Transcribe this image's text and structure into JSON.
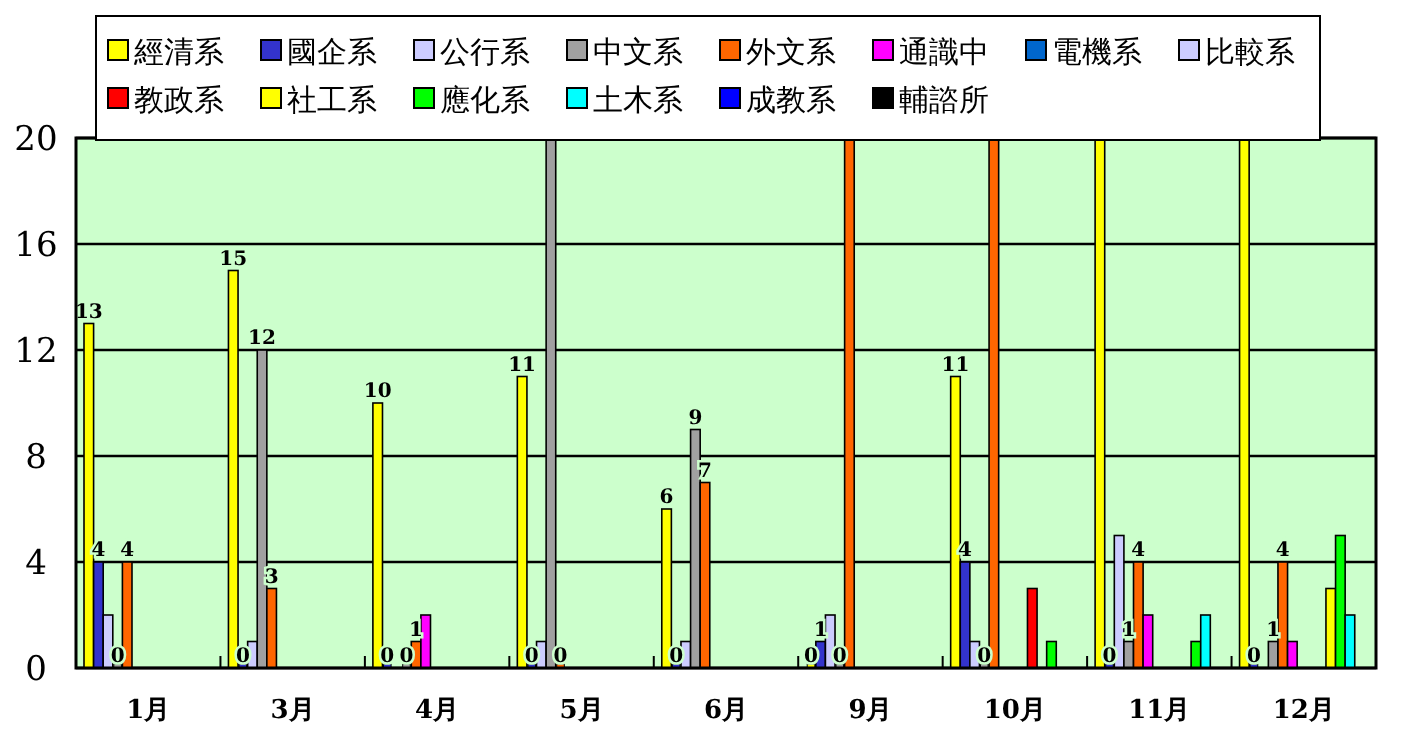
{
  "chart_data": {
    "type": "bar",
    "categories": [
      "1月",
      "3月",
      "4月",
      "5月",
      "6月",
      "9月",
      "10月",
      "11月",
      "12月"
    ],
    "series": [
      {
        "name": "經清系",
        "color": "#ffff00",
        "values": [
          13,
          15,
          10,
          11,
          6,
          0,
          11,
          20,
          20
        ],
        "value_labels": [
          "13",
          "15",
          "10",
          "11",
          "6",
          "0",
          "11",
          null,
          null
        ]
      },
      {
        "name": "國企系",
        "color": "#3333cc",
        "values": [
          4,
          0,
          0,
          0,
          0,
          1,
          4,
          0,
          0
        ],
        "value_labels": [
          "4",
          "0",
          "0",
          "0",
          "0",
          "1",
          "4",
          "0",
          "0"
        ]
      },
      {
        "name": "公行系",
        "color": "#ccccff",
        "values": [
          2,
          1,
          null,
          1,
          1,
          2,
          1,
          5,
          null
        ]
      },
      {
        "name": "中文系",
        "color": "#a0a0a0",
        "values": [
          0,
          12,
          0,
          20,
          9,
          0,
          0,
          1,
          1
        ],
        "value_labels": [
          "0",
          "12",
          "0",
          null,
          "9",
          "0",
          "0",
          "1",
          "1"
        ]
      },
      {
        "name": "外文系",
        "color": "#ff6600",
        "values": [
          4,
          3,
          1,
          0,
          7,
          20,
          20,
          4,
          4
        ],
        "value_labels": [
          "4",
          "3",
          "1",
          "0",
          "7",
          null,
          null,
          "4",
          "4"
        ]
      },
      {
        "name": "通識中",
        "color": "#ff00ff",
        "values": [
          null,
          null,
          2,
          null,
          null,
          null,
          null,
          2,
          1
        ]
      },
      {
        "name": "電機系",
        "color": "#0066cc",
        "values": [
          null,
          null,
          null,
          null,
          null,
          null,
          null,
          null,
          null
        ]
      },
      {
        "name": "比較系",
        "color": "#ccccff",
        "values": [
          null,
          null,
          null,
          null,
          null,
          null,
          null,
          null,
          null
        ]
      },
      {
        "name": "教政系",
        "color": "#ff0000",
        "values": [
          null,
          null,
          null,
          null,
          null,
          null,
          3,
          null,
          null
        ]
      },
      {
        "name": "社工系",
        "color": "#ffff00",
        "values": [
          null,
          null,
          null,
          null,
          null,
          null,
          null,
          null,
          3
        ]
      },
      {
        "name": "應化系",
        "color": "#00ff00",
        "values": [
          null,
          null,
          null,
          null,
          null,
          null,
          1,
          1,
          5
        ]
      },
      {
        "name": "土木系",
        "color": "#00ffff",
        "values": [
          null,
          null,
          null,
          null,
          null,
          null,
          null,
          2,
          2
        ]
      },
      {
        "name": "成教系",
        "color": "#0000ff",
        "values": [
          null,
          null,
          null,
          null,
          null,
          null,
          null,
          null,
          null
        ]
      },
      {
        "name": "輔諮所",
        "color": "#000000",
        "values": [
          null,
          null,
          null,
          null,
          null,
          null,
          null,
          null,
          null
        ]
      }
    ],
    "ylim": [
      0,
      20
    ],
    "yticks": [
      0,
      4,
      8,
      12,
      16,
      20
    ],
    "grid": "y",
    "legend": "top"
  }
}
